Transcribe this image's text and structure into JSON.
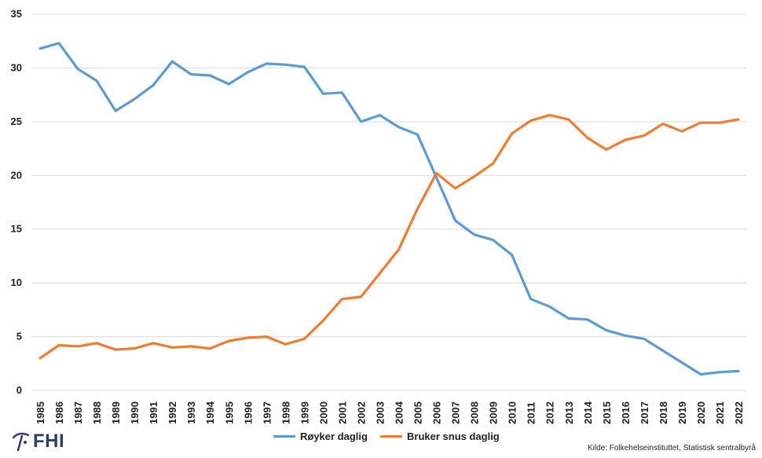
{
  "chart_data": {
    "type": "line",
    "x": [
      "1985",
      "1986",
      "1987",
      "1988",
      "1989",
      "1990",
      "1991",
      "1992",
      "1993",
      "1994",
      "1995",
      "1996",
      "1997",
      "1998",
      "1999",
      "2000",
      "2001",
      "2002",
      "2003",
      "2004",
      "2005",
      "2006",
      "2007",
      "2008",
      "2009",
      "2010",
      "2011",
      "2012",
      "2013",
      "2014",
      "2015",
      "2016",
      "2017",
      "2018",
      "2019",
      "2020",
      "2021",
      "2022"
    ],
    "series": [
      {
        "name": "Røyker daglig",
        "color": "#5b9bd5",
        "values": [
          31.8,
          32.3,
          29.9,
          28.8,
          26.0,
          27.1,
          28.4,
          30.6,
          29.4,
          29.3,
          28.5,
          29.6,
          30.4,
          30.3,
          30.1,
          27.6,
          27.7,
          25.0,
          25.6,
          24.5,
          23.8,
          19.8,
          15.8,
          14.5,
          14.0,
          12.6,
          8.5,
          7.8,
          6.7,
          6.6,
          5.6,
          5.1,
          4.8,
          3.7,
          2.6,
          1.5,
          1.7,
          1.8
        ]
      },
      {
        "name": "Bruker snus daglig",
        "color": "#ed7d31",
        "values": [
          3.0,
          4.2,
          4.1,
          4.4,
          3.8,
          3.9,
          4.4,
          4.0,
          4.1,
          3.9,
          4.6,
          4.9,
          5.0,
          4.3,
          4.8,
          6.5,
          8.5,
          8.7,
          10.9,
          13.1,
          16.9,
          20.2,
          18.8,
          19.9,
          21.1,
          23.9,
          25.1,
          25.6,
          25.2,
          23.5,
          22.4,
          23.3,
          23.7,
          24.8,
          24.1,
          24.9,
          24.9,
          25.2
        ]
      }
    ],
    "yticks": [
      "0",
      "5",
      "10",
      "15",
      "20",
      "25",
      "30",
      "35"
    ],
    "ylim": [
      0,
      35
    ],
    "grid": true,
    "legend": "bottom"
  },
  "logo": {
    "text": "FHI"
  },
  "source": "Kilde: Folkehelseinstituttet, Statistisk sentralbyrå"
}
